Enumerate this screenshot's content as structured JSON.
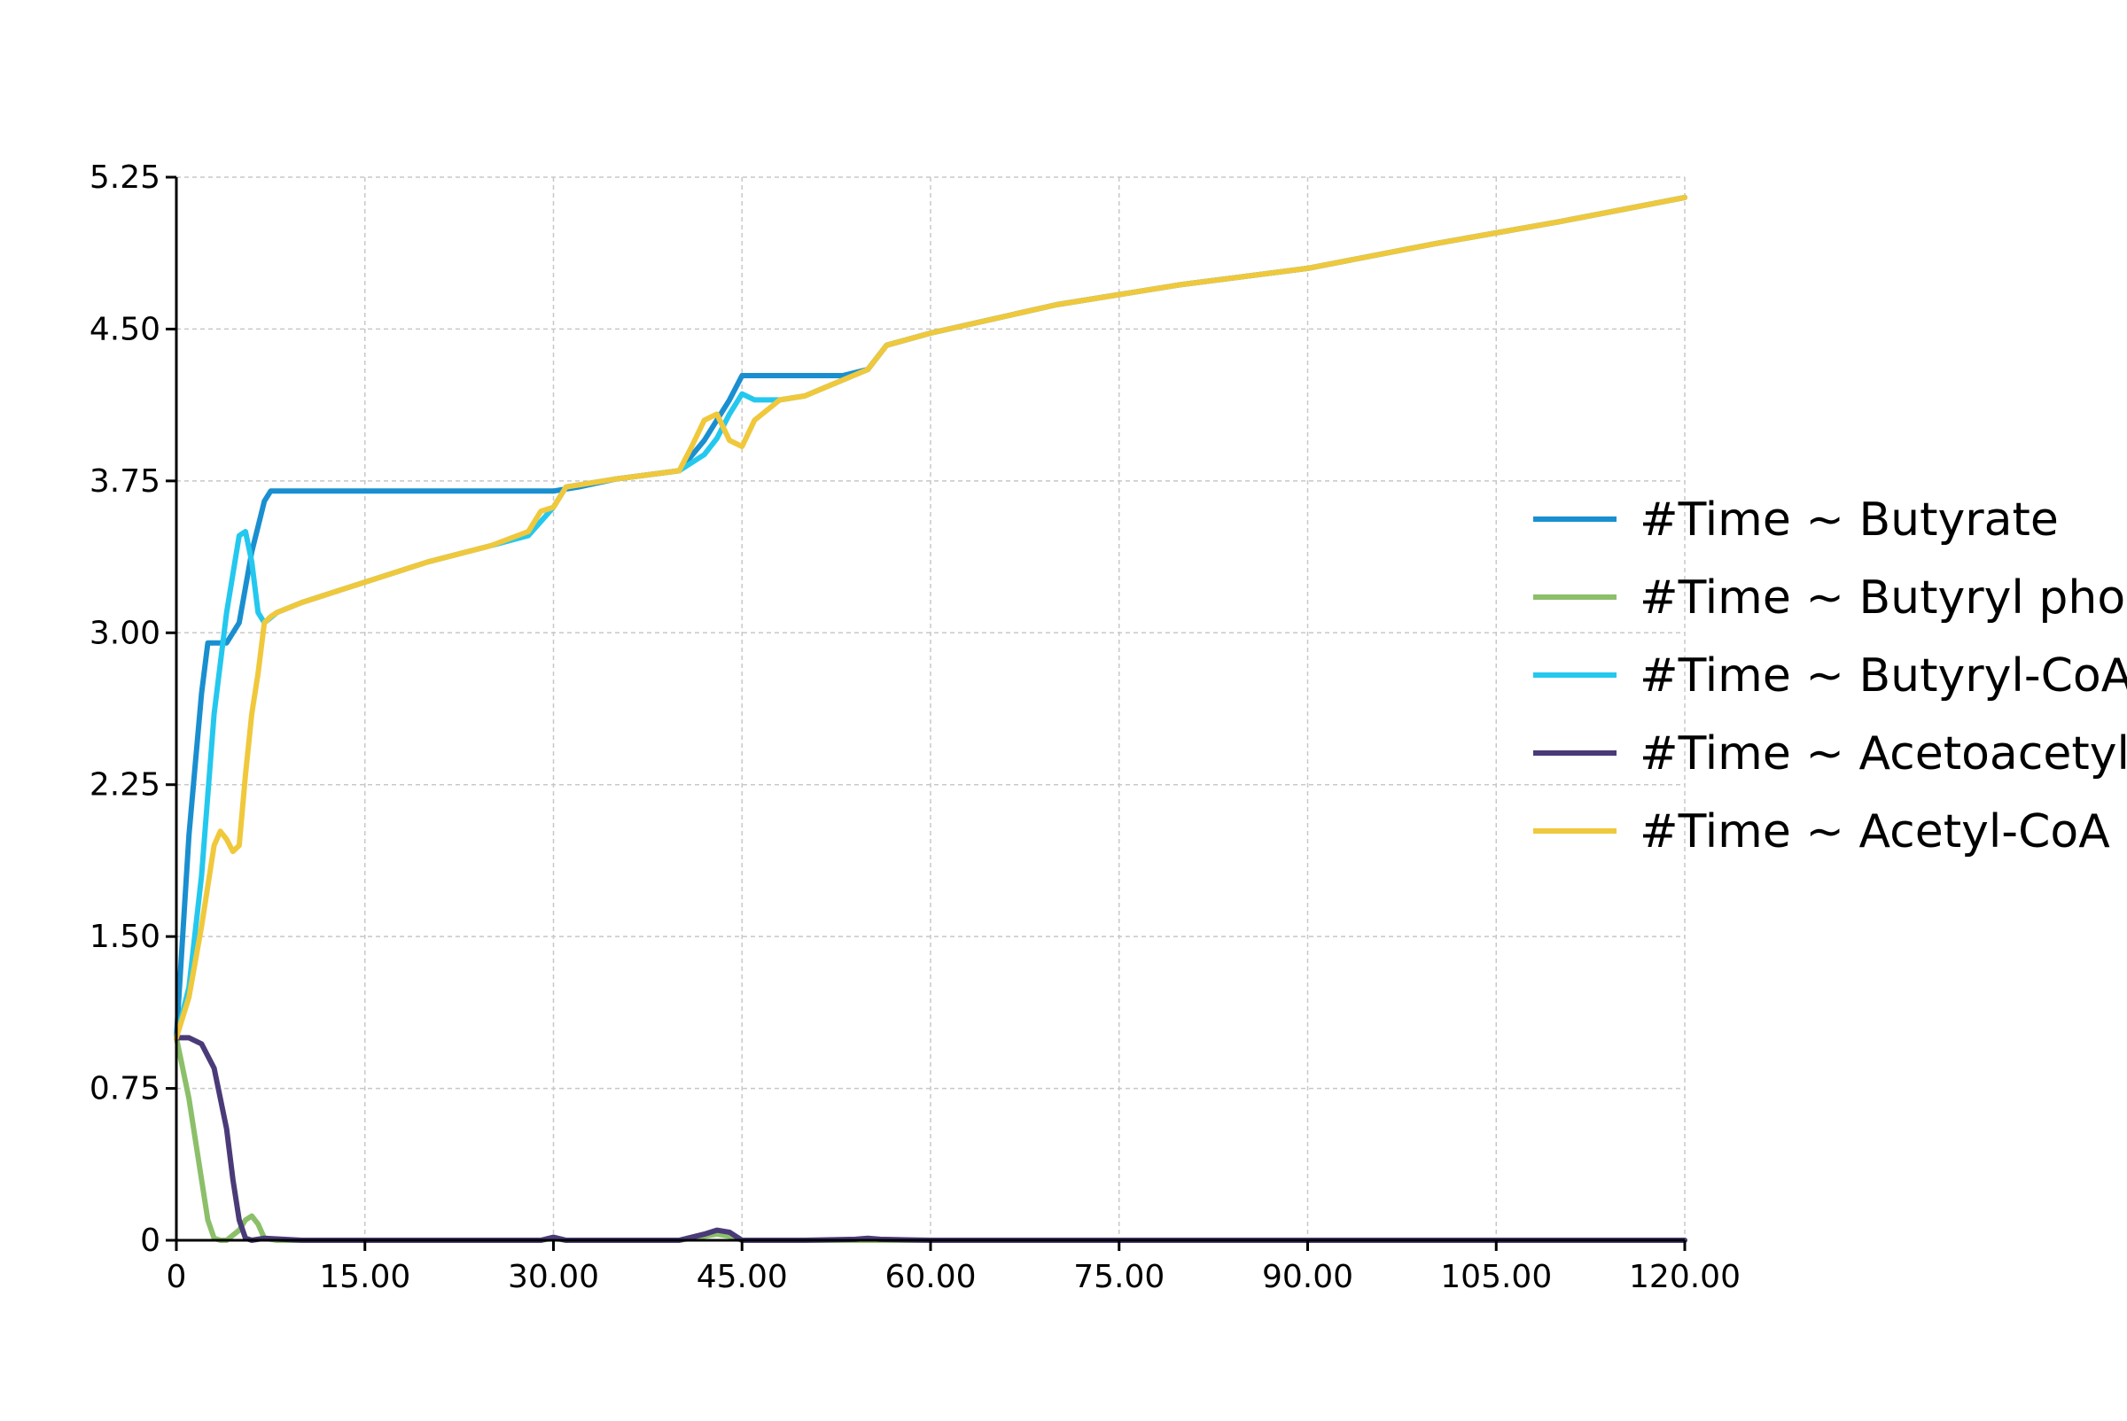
{
  "chart_data": {
    "type": "line",
    "title": "",
    "xlabel": "",
    "ylabel": "",
    "xlim": [
      0,
      120
    ],
    "ylim": [
      0,
      5.25
    ],
    "x_ticks": [
      0,
      15,
      30,
      45,
      60,
      75,
      90,
      105,
      120
    ],
    "x_tick_labels": [
      "0",
      "15.00",
      "30.00",
      "45.00",
      "60.00",
      "75.00",
      "90.00",
      "105.00",
      "120.00"
    ],
    "y_ticks": [
      0,
      0.75,
      1.5,
      2.25,
      3.0,
      3.75,
      4.5,
      5.25
    ],
    "y_tick_labels": [
      "0",
      "0.75",
      "1.50",
      "2.25",
      "3.00",
      "3.75",
      "4.50",
      "5.25"
    ],
    "grid": true,
    "legend_position": "right",
    "series": [
      {
        "name": "#Time ~ Butyrate",
        "color": "#1a8fd0",
        "x": [
          0,
          1,
          2,
          2.5,
          3,
          4,
          5,
          6,
          7,
          7.5,
          10,
          20,
          30,
          32,
          35,
          40,
          42,
          44,
          45,
          50,
          53,
          55,
          56.5,
          60,
          70,
          80,
          90,
          100,
          110,
          120
        ],
        "y": [
          1.0,
          2.0,
          2.7,
          2.95,
          2.95,
          2.95,
          3.05,
          3.4,
          3.65,
          3.7,
          3.7,
          3.7,
          3.7,
          3.72,
          3.76,
          3.8,
          3.95,
          4.15,
          4.27,
          4.27,
          4.27,
          4.3,
          4.42,
          4.48,
          4.62,
          4.72,
          4.8,
          4.92,
          5.03,
          5.15
        ]
      },
      {
        "name": "#Time ~ Butyryl phos",
        "color": "#8cbf6a",
        "x": [
          0,
          1,
          2,
          2.5,
          3,
          3.5,
          4,
          5,
          5.5,
          6,
          6.5,
          7,
          8,
          10,
          20,
          29,
          30,
          31,
          40,
          42,
          43,
          44,
          45,
          50,
          120
        ],
        "y": [
          1.0,
          0.7,
          0.3,
          0.1,
          0.01,
          0,
          0,
          0.05,
          0.1,
          0.12,
          0.08,
          0.01,
          0,
          0,
          0,
          0,
          0.01,
          0,
          0,
          0.02,
          0.03,
          0.02,
          0,
          0,
          0
        ]
      },
      {
        "name": "#Time ~ Butyryl-CoA",
        "color": "#24c8ee",
        "x": [
          0,
          1,
          2,
          3,
          4,
          5,
          5.5,
          6,
          6.5,
          7,
          8,
          10,
          15,
          20,
          25,
          28,
          30,
          31,
          35,
          40,
          42,
          43,
          44,
          45,
          46,
          48,
          50,
          55,
          56.5,
          60,
          70,
          80,
          90,
          100,
          110,
          120
        ],
        "y": [
          1.0,
          1.25,
          1.8,
          2.6,
          3.1,
          3.48,
          3.5,
          3.35,
          3.1,
          3.05,
          3.1,
          3.15,
          3.25,
          3.35,
          3.43,
          3.48,
          3.62,
          3.72,
          3.76,
          3.8,
          3.88,
          3.96,
          4.08,
          4.18,
          4.15,
          4.15,
          4.17,
          4.3,
          4.42,
          4.48,
          4.62,
          4.72,
          4.8,
          4.92,
          5.03,
          5.15
        ]
      },
      {
        "name": "#Time ~ Acetoacetyl-",
        "color": "#4a3b78",
        "x": [
          0,
          1,
          2,
          3,
          4,
          4.5,
          5,
          5.5,
          6,
          7,
          10,
          20,
          29,
          30,
          31,
          40,
          42,
          43,
          44,
          45,
          50,
          54,
          55,
          56,
          60,
          120
        ],
        "y": [
          1.0,
          1.0,
          0.97,
          0.85,
          0.55,
          0.3,
          0.1,
          0.01,
          0,
          0.01,
          0,
          0,
          0,
          0.015,
          0,
          0,
          0.03,
          0.05,
          0.04,
          0,
          0,
          0.005,
          0.01,
          0.005,
          0,
          0
        ]
      },
      {
        "name": "#Time ~ Acetyl-CoA",
        "color": "#f0c83c",
        "x": [
          0,
          1,
          2,
          3,
          3.5,
          4,
          4.5,
          5,
          5.5,
          6,
          6.5,
          7,
          7.5,
          8,
          10,
          15,
          20,
          25,
          28,
          29,
          30,
          31,
          35,
          40,
          41,
          42,
          43,
          44,
          45,
          46,
          48,
          50,
          55,
          56.5,
          60,
          70,
          80,
          90,
          100,
          110,
          120
        ],
        "y": [
          1.0,
          1.2,
          1.55,
          1.95,
          2.02,
          1.98,
          1.92,
          1.95,
          2.3,
          2.6,
          2.8,
          3.05,
          3.08,
          3.1,
          3.15,
          3.25,
          3.35,
          3.43,
          3.5,
          3.6,
          3.62,
          3.72,
          3.76,
          3.8,
          3.92,
          4.05,
          4.08,
          3.95,
          3.92,
          4.05,
          4.15,
          4.17,
          4.3,
          4.42,
          4.48,
          4.62,
          4.72,
          4.8,
          4.92,
          5.03,
          5.15
        ]
      }
    ]
  }
}
